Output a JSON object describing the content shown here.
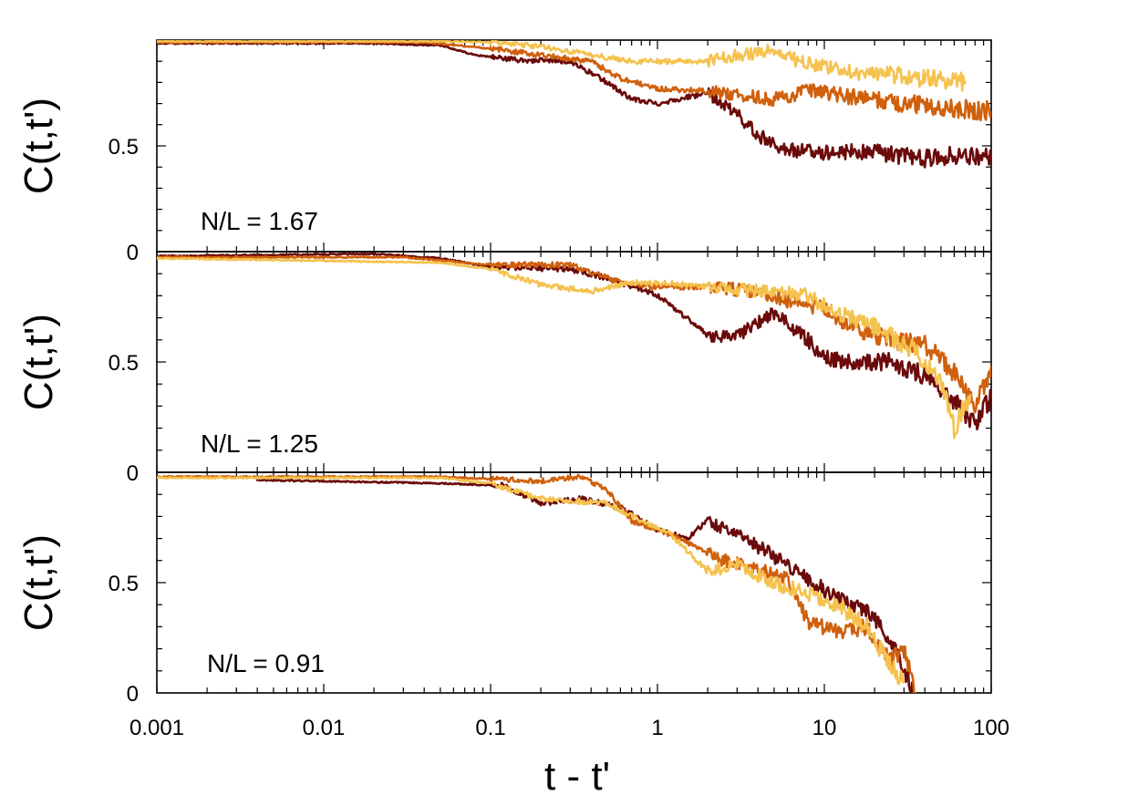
{
  "chart_data": {
    "type": "line",
    "x_scale": "log",
    "xlim": [
      0.001,
      100
    ],
    "ylim": [
      0,
      1
    ],
    "xlabel": "t - t'",
    "x_tick_labels": [
      "0.001",
      "0.01",
      "0.1",
      "1",
      "10",
      "100"
    ],
    "x_tick_values": [
      0.001,
      0.01,
      0.1,
      1,
      10,
      100
    ],
    "panels": [
      {
        "ylabel": "C(t,t')",
        "annotation": "N/L = 1.67",
        "y_tick_labels": [
          "0.5",
          "0"
        ],
        "y_tick_values": [
          0.5,
          0
        ],
        "series": [
          {
            "name": "dark",
            "color": "#6b0a0a",
            "points": [
              [
                0.001,
                0.985
              ],
              [
                0.02,
                0.985
              ],
              [
                0.05,
                0.975
              ],
              [
                0.08,
                0.93
              ],
              [
                0.15,
                0.905
              ],
              [
                0.3,
                0.9
              ],
              [
                0.5,
                0.8
              ],
              [
                0.7,
                0.72
              ],
              [
                1,
                0.7
              ],
              [
                2,
                0.75
              ],
              [
                3,
                0.65
              ],
              [
                4,
                0.55
              ],
              [
                6,
                0.48
              ],
              [
                10,
                0.47
              ],
              [
                20,
                0.47
              ],
              [
                40,
                0.44
              ],
              [
                70,
                0.46
              ],
              [
                100,
                0.44
              ]
            ]
          },
          {
            "name": "orange",
            "color": "#d0600c",
            "points": [
              [
                0.001,
                0.99
              ],
              [
                0.04,
                0.99
              ],
              [
                0.1,
                0.96
              ],
              [
                0.2,
                0.93
              ],
              [
                0.4,
                0.9
              ],
              [
                0.6,
                0.82
              ],
              [
                1,
                0.77
              ],
              [
                2,
                0.76
              ],
              [
                3,
                0.74
              ],
              [
                5,
                0.72
              ],
              [
                8,
                0.76
              ],
              [
                15,
                0.73
              ],
              [
                30,
                0.7
              ],
              [
                60,
                0.68
              ],
              [
                100,
                0.66
              ]
            ]
          },
          {
            "name": "yellow",
            "color": "#f5c24f",
            "points": [
              [
                0.001,
                0.995
              ],
              [
                0.05,
                0.995
              ],
              [
                0.1,
                0.99
              ],
              [
                0.2,
                0.97
              ],
              [
                0.4,
                0.93
              ],
              [
                0.7,
                0.9
              ],
              [
                1,
                0.9
              ],
              [
                2,
                0.9
              ],
              [
                3,
                0.93
              ],
              [
                5,
                0.95
              ],
              [
                7,
                0.9
              ],
              [
                10,
                0.87
              ],
              [
                20,
                0.84
              ],
              [
                40,
                0.82
              ],
              [
                70,
                0.8
              ]
            ]
          }
        ]
      },
      {
        "ylabel": "C(t,t')",
        "annotation": "N/L = 1.25",
        "y_tick_labels": [
          "0.5",
          "0"
        ],
        "y_tick_values": [
          0.5,
          0
        ],
        "series": [
          {
            "name": "dark",
            "color": "#6b0a0a",
            "points": [
              [
                0.001,
                0.98
              ],
              [
                0.02,
                0.99
              ],
              [
                0.05,
                0.97
              ],
              [
                0.1,
                0.93
              ],
              [
                0.3,
                0.92
              ],
              [
                0.5,
                0.88
              ],
              [
                1,
                0.8
              ],
              [
                1.5,
                0.7
              ],
              [
                2,
                0.62
              ],
              [
                3,
                0.62
              ],
              [
                5,
                0.72
              ],
              [
                8,
                0.6
              ],
              [
                10,
                0.52
              ],
              [
                15,
                0.5
              ],
              [
                25,
                0.5
              ],
              [
                40,
                0.44
              ],
              [
                60,
                0.32
              ],
              [
                80,
                0.22
              ],
              [
                100,
                0.34
              ]
            ]
          },
          {
            "name": "orange",
            "color": "#d0600c",
            "points": [
              [
                0.001,
                0.975
              ],
              [
                0.03,
                0.975
              ],
              [
                0.1,
                0.94
              ],
              [
                0.3,
                0.94
              ],
              [
                0.6,
                0.86
              ],
              [
                1,
                0.84
              ],
              [
                2,
                0.84
              ],
              [
                4,
                0.82
              ],
              [
                6,
                0.78
              ],
              [
                10,
                0.74
              ],
              [
                15,
                0.65
              ],
              [
                25,
                0.6
              ],
              [
                40,
                0.58
              ],
              [
                60,
                0.45
              ],
              [
                80,
                0.3
              ],
              [
                100,
                0.48
              ]
            ]
          },
          {
            "name": "yellow",
            "color": "#f5c24f",
            "points": [
              [
                0.001,
                0.97
              ],
              [
                0.05,
                0.95
              ],
              [
                0.1,
                0.92
              ],
              [
                0.2,
                0.85
              ],
              [
                0.4,
                0.82
              ],
              [
                0.7,
                0.86
              ],
              [
                1,
                0.86
              ],
              [
                2,
                0.84
              ],
              [
                4,
                0.82
              ],
              [
                8,
                0.8
              ],
              [
                12,
                0.72
              ],
              [
                20,
                0.66
              ],
              [
                35,
                0.55
              ],
              [
                50,
                0.42
              ],
              [
                60,
                0.2
              ],
              [
                75,
                0.35
              ]
            ]
          }
        ]
      },
      {
        "ylabel": "C(t,t')",
        "annotation": "N/L = 0.91",
        "y_tick_labels": [
          "0.5",
          "0"
        ],
        "y_tick_values": [
          0.5,
          0
        ],
        "series": [
          {
            "name": "dark",
            "color": "#6b0a0a",
            "points": [
              [
                0.004,
                0.965
              ],
              [
                0.05,
                0.95
              ],
              [
                0.12,
                0.94
              ],
              [
                0.2,
                0.86
              ],
              [
                0.35,
                0.88
              ],
              [
                0.6,
                0.84
              ],
              [
                1,
                0.74
              ],
              [
                1.5,
                0.7
              ],
              [
                2,
                0.78
              ],
              [
                3,
                0.72
              ],
              [
                5,
                0.62
              ],
              [
                8,
                0.52
              ],
              [
                12,
                0.42
              ],
              [
                18,
                0.38
              ],
              [
                25,
                0.25
              ],
              [
                30,
                0.1
              ],
              [
                35,
                0.0
              ]
            ]
          },
          {
            "name": "orange",
            "color": "#d0600c",
            "points": [
              [
                0.001,
                0.98
              ],
              [
                0.05,
                0.98
              ],
              [
                0.2,
                0.96
              ],
              [
                0.35,
                0.98
              ],
              [
                0.5,
                0.92
              ],
              [
                0.7,
                0.78
              ],
              [
                1,
                0.74
              ],
              [
                1.5,
                0.68
              ],
              [
                2.5,
                0.6
              ],
              [
                4,
                0.56
              ],
              [
                6,
                0.52
              ],
              [
                8,
                0.32
              ],
              [
                12,
                0.28
              ],
              [
                18,
                0.3
              ],
              [
                25,
                0.15
              ],
              [
                30,
                0.2
              ],
              [
                35,
                0.0
              ]
            ]
          },
          {
            "name": "yellow",
            "color": "#f5c24f",
            "points": [
              [
                0.001,
                0.975
              ],
              [
                0.05,
                0.975
              ],
              [
                0.1,
                0.95
              ],
              [
                0.2,
                0.88
              ],
              [
                0.5,
                0.86
              ],
              [
                0.8,
                0.78
              ],
              [
                1.2,
                0.72
              ],
              [
                2,
                0.55
              ],
              [
                3,
                0.58
              ],
              [
                5,
                0.5
              ],
              [
                8,
                0.45
              ],
              [
                12,
                0.4
              ],
              [
                18,
                0.3
              ],
              [
                25,
                0.12
              ],
              [
                30,
                0.05
              ]
            ]
          }
        ]
      }
    ]
  }
}
